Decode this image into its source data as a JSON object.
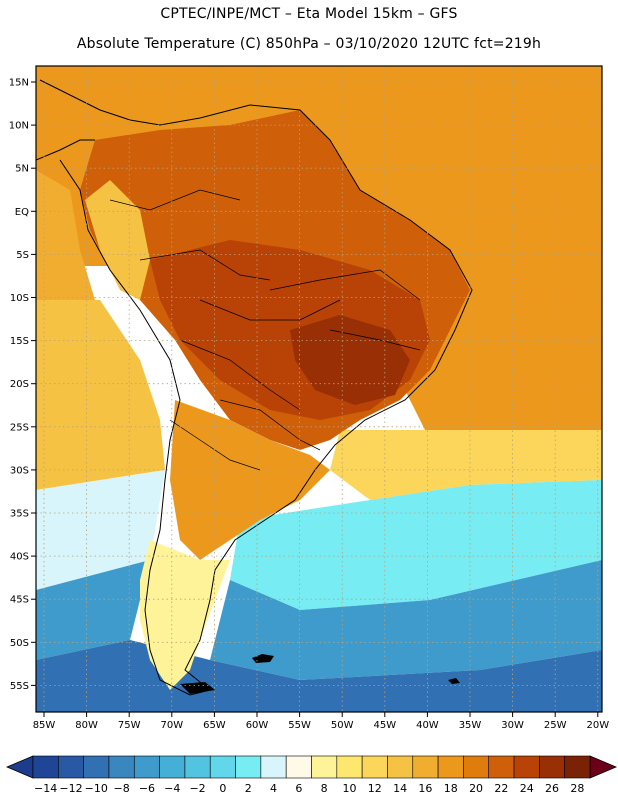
{
  "header": {
    "line1": "CPTEC/INPE/MCT –  Eta Model 15km – GFS",
    "line2": "Absolute Temperature (C) 850hPa – 03/10/2020 12UTC fct=219h"
  },
  "map": {
    "lat_labels": [
      "15N",
      "10N",
      "5N",
      "EQ",
      "5S",
      "10S",
      "15S",
      "20S",
      "25S",
      "30S",
      "35S",
      "40S",
      "45S",
      "50S",
      "55S"
    ],
    "lon_labels": [
      "85W",
      "80W",
      "75W",
      "70W",
      "65W",
      "60W",
      "55W",
      "50W",
      "45W",
      "40W",
      "35W",
      "30W",
      "25W",
      "20W"
    ],
    "regions": [
      {
        "name": "ocean-north-atlantic",
        "level": 18
      },
      {
        "name": "ocean-caribbean",
        "level": 18
      },
      {
        "name": "ocean-pacific-equatorial",
        "level": 16
      },
      {
        "name": "ocean-pacific-subtropical",
        "level": 14
      },
      {
        "name": "ocean-pacific-midlat",
        "level": 4
      },
      {
        "name": "ocean-pacific-south",
        "level": -6
      },
      {
        "name": "ocean-south-atlantic-north",
        "level": 18
      },
      {
        "name": "ocean-south-atlantic-subtropical",
        "level": 12
      },
      {
        "name": "ocean-south-atlantic-midlat",
        "level": 2
      },
      {
        "name": "ocean-south-atlantic-south",
        "level": -6
      },
      {
        "name": "ocean-drake-passage",
        "level": -10
      },
      {
        "name": "land-amazon",
        "level": 22
      },
      {
        "name": "land-central-brazil",
        "level": 24
      },
      {
        "name": "land-hot-core",
        "level": 26
      },
      {
        "name": "land-andes-north",
        "level": 14
      },
      {
        "name": "land-southern-cone",
        "level": 18
      },
      {
        "name": "land-patagonia",
        "level": 8
      }
    ]
  },
  "colorbar": {
    "tick_labels": [
      "-14",
      "-12",
      "-10",
      "-8",
      "-6",
      "-4",
      "-2",
      "0",
      "2",
      "4",
      "6",
      "8",
      "10",
      "12",
      "14",
      "16",
      "18",
      "20",
      "22",
      "24",
      "26",
      "28"
    ],
    "colors": {
      "under": "#1e3c8c",
      "bins": [
        "#1f4597",
        "#2959a5",
        "#3170b3",
        "#3a87c0",
        "#3f9bcb",
        "#45b0d7",
        "#52c3e1",
        "#62d7ea",
        "#77ecf3",
        "#d7f5fa",
        "#fff9e8",
        "#fff39a",
        "#fde76e",
        "#fbd65a",
        "#f6c243",
        "#f1ad2f",
        "#eb981d",
        "#e07c0e",
        "#cf5f08",
        "#b94206",
        "#982f05",
        "#7a2304"
      ],
      "over": "#6b0018"
    }
  },
  "palette": {
    "ocean_grid": "#c8b28a",
    "coast": "#000000"
  }
}
